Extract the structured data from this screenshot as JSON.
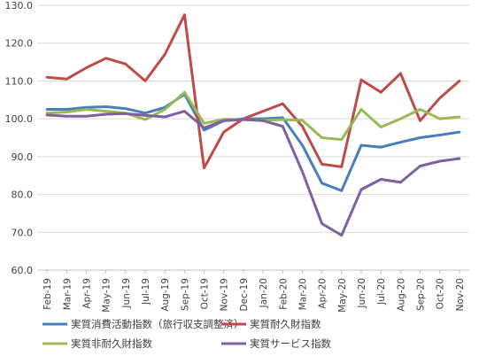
{
  "chart_data": {
    "type": "line",
    "categories": [
      "Feb-19",
      "Mar-19",
      "Apr-19",
      "May-19",
      "Jun-19",
      "Jul-19",
      "Aug-19",
      "Sep-19",
      "Oct-19",
      "Nov-19",
      "Dec-19",
      "Jan-20",
      "Feb-20",
      "Mar-20",
      "Apr-20",
      "May-20",
      "Jun-20",
      "Jul-20",
      "Aug-20",
      "Sep-20",
      "Oct-20",
      "Nov-20"
    ],
    "ylim": [
      60,
      130
    ],
    "yticks": [
      "60.0",
      "70.0",
      "80.0",
      "90.0",
      "100.0",
      "110.0",
      "120.0",
      "130.0"
    ],
    "grid": true,
    "legend_position": "bottom",
    "series": [
      {
        "name": "実質消費活動指数（旅行収支調整済）",
        "color": "#4a7ebb",
        "values": [
          102.5,
          102.5,
          103.0,
          103.2,
          102.7,
          101.5,
          103.0,
          106.5,
          97.0,
          99.5,
          100.0,
          100.0,
          100.3,
          93.0,
          83.0,
          81.0,
          93.0,
          92.5,
          93.8,
          95.0,
          95.7,
          96.5
        ]
      },
      {
        "name": "実質耐久財指数",
        "color": "#be4b48",
        "values": [
          111.0,
          110.5,
          113.5,
          116.0,
          114.5,
          110.0,
          117.0,
          127.5,
          87.0,
          96.5,
          100.0,
          102.0,
          104.0,
          98.0,
          88.0,
          87.3,
          110.3,
          107.0,
          112.0,
          99.5,
          105.5,
          110.0
        ]
      },
      {
        "name": "実質非耐久財指数",
        "color": "#98b954",
        "values": [
          101.5,
          101.8,
          102.5,
          102.0,
          101.5,
          99.8,
          102.5,
          107.0,
          98.8,
          99.9,
          99.8,
          99.6,
          99.8,
          99.6,
          95.0,
          94.5,
          102.5,
          97.8,
          100.0,
          102.5,
          100.0,
          100.5
        ]
      },
      {
        "name": "実質サービス指数",
        "color": "#7d60a0",
        "values": [
          101.0,
          100.7,
          100.7,
          101.2,
          101.4,
          100.9,
          100.5,
          102.0,
          97.6,
          99.5,
          99.8,
          99.5,
          98.0,
          86.0,
          72.3,
          69.2,
          81.3,
          84.0,
          83.2,
          87.5,
          88.8,
          89.5
        ]
      }
    ]
  }
}
